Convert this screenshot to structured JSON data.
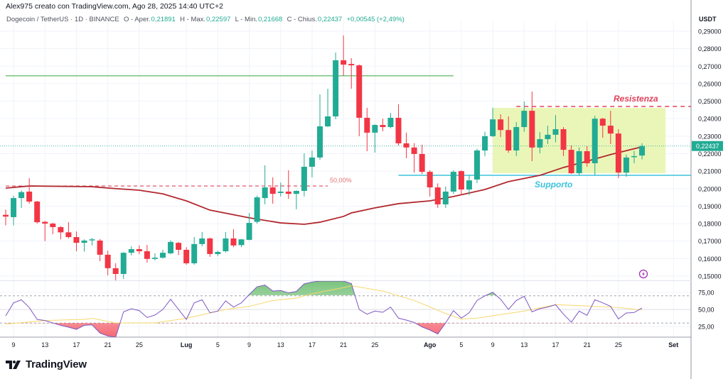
{
  "header": {
    "attribution": "Alex975 creato con TradingView.com, Ago 28, 2025 14:40 UTC+2"
  },
  "legend": {
    "symbol": "Dogecoin / TetherUS · 1D · BINANCE",
    "open_label": "O - Aper.",
    "open": "0,21891",
    "high_label": "H - Max.",
    "high": "0,22597",
    "low_label": "L - Min.",
    "low": "0,21668",
    "close_label": "C - Chius.",
    "close": "0,22437",
    "change": "+0,00545 (+2,49%)"
  },
  "price_axis": {
    "unit": "USDT",
    "ticks": [
      "0,29000",
      "0,28000",
      "0,27000",
      "0,26000",
      "0,25000",
      "0,24000",
      "0,23000",
      "0,22000",
      "0,21000",
      "0,20000",
      "0,19000",
      "0,18000",
      "0,17000",
      "0,16000",
      "0,15000"
    ],
    "tick_values": [
      0.29,
      0.28,
      0.27,
      0.26,
      0.25,
      0.24,
      0.23,
      0.22,
      0.21,
      0.2,
      0.19,
      0.18,
      0.17,
      0.16,
      0.15
    ],
    "last_price_label": "0,22437",
    "last_price": 0.22437
  },
  "rsi_axis": {
    "ticks": [
      "75,00",
      "50,00",
      "25,00"
    ],
    "tick_values": [
      75,
      50,
      25
    ],
    "bands": [
      70,
      50,
      30
    ]
  },
  "time_axis": [
    {
      "label": "9",
      "date": "2025-06-09"
    },
    {
      "label": "13",
      "date": "2025-06-13"
    },
    {
      "label": "17",
      "date": "2025-06-17"
    },
    {
      "label": "21",
      "date": "2025-06-21"
    },
    {
      "label": "25",
      "date": "2025-06-25"
    },
    {
      "label": "Lug",
      "date": "2025-07-01",
      "bold": true
    },
    {
      "label": "5",
      "date": "2025-07-05"
    },
    {
      "label": "9",
      "date": "2025-07-09"
    },
    {
      "label": "13",
      "date": "2025-07-13"
    },
    {
      "label": "17",
      "date": "2025-07-17"
    },
    {
      "label": "21",
      "date": "2025-07-21"
    },
    {
      "label": "25",
      "date": "2025-07-25"
    },
    {
      "label": "Ago",
      "date": "2025-08-01",
      "bold": true
    },
    {
      "label": "5",
      "date": "2025-08-05"
    },
    {
      "label": "9",
      "date": "2025-08-09"
    },
    {
      "label": "13",
      "date": "2025-08-13"
    },
    {
      "label": "17",
      "date": "2025-08-17"
    },
    {
      "label": "21",
      "date": "2025-08-21"
    },
    {
      "label": "25",
      "date": "2025-08-25"
    },
    {
      "label": "Set",
      "date": "2025-09-01",
      "bold": true
    }
  ],
  "colors": {
    "up": "#22ab94",
    "down": "#f23645",
    "ma": "#b2282e",
    "rsi": "#7e57c2",
    "rsi_ma": "#f7d76b",
    "support": "#3cc3dc",
    "resistance": "#e0425a",
    "horizontal": "#4caf50",
    "zone": "#e8f5b0",
    "grid": "#f0f3fa"
  },
  "chart_data": {
    "type": "candlestick",
    "fields": [
      "date",
      "open",
      "high",
      "low",
      "close",
      "rsi"
    ],
    "candles": [
      [
        "2025-06-08",
        0.185,
        0.188,
        0.179,
        0.184,
        40.6
      ],
      [
        "2025-06-09",
        0.1837,
        0.196,
        0.179,
        0.1946,
        59.7
      ],
      [
        "2025-06-10",
        0.1946,
        0.199,
        0.189,
        0.198,
        64.2
      ],
      [
        "2025-06-11",
        0.1983,
        0.206,
        0.1914,
        0.1926,
        52.8
      ],
      [
        "2025-06-12",
        0.1926,
        0.193,
        0.18,
        0.1808,
        35.4
      ],
      [
        "2025-06-13",
        0.181,
        0.1815,
        0.17,
        0.18,
        33.7
      ],
      [
        "2025-06-14",
        0.18,
        0.1805,
        0.174,
        0.178,
        30.2
      ],
      [
        "2025-06-15",
        0.178,
        0.1785,
        0.171,
        0.175,
        26.7
      ],
      [
        "2025-06-16",
        0.175,
        0.1808,
        0.1715,
        0.1723,
        24.0
      ],
      [
        "2025-06-17",
        0.1723,
        0.1755,
        0.1642,
        0.169,
        20.8
      ],
      [
        "2025-06-18",
        0.169,
        0.171,
        0.164,
        0.1703,
        26.7
      ],
      [
        "2025-06-19",
        0.1708,
        0.1718,
        0.1675,
        0.171,
        27.4
      ],
      [
        "2025-06-20",
        0.1703,
        0.1712,
        0.1585,
        0.1622,
        15.3
      ],
      [
        "2025-06-21",
        0.1622,
        0.1645,
        0.1504,
        0.1545,
        11.1
      ],
      [
        "2025-06-22",
        0.1545,
        0.1573,
        0.1471,
        0.1512,
        9.4
      ],
      [
        "2025-06-23",
        0.1512,
        0.1637,
        0.1484,
        0.1633,
        46.5
      ],
      [
        "2025-06-24",
        0.1633,
        0.167,
        0.1618,
        0.1654,
        51.0
      ],
      [
        "2025-06-25",
        0.1654,
        0.1675,
        0.1625,
        0.1642,
        48.3
      ],
      [
        "2025-06-26",
        0.1642,
        0.1678,
        0.1577,
        0.1598,
        38.2
      ],
      [
        "2025-06-27",
        0.1598,
        0.163,
        0.159,
        0.1605,
        41.7
      ],
      [
        "2025-06-28",
        0.1605,
        0.165,
        0.16,
        0.1633,
        50.0
      ],
      [
        "2025-06-29",
        0.163,
        0.1705,
        0.1625,
        0.1695,
        64.9
      ],
      [
        "2025-06-30",
        0.169,
        0.1695,
        0.162,
        0.165,
        50.0
      ],
      [
        "2025-07-01",
        0.165,
        0.1665,
        0.1565,
        0.1573,
        35.4
      ],
      [
        "2025-07-02",
        0.1573,
        0.1723,
        0.1565,
        0.1683,
        59.7
      ],
      [
        "2025-07-03",
        0.1683,
        0.1752,
        0.167,
        0.1715,
        64.2
      ],
      [
        "2025-07-04",
        0.1715,
        0.172,
        0.161,
        0.1626,
        45.1
      ],
      [
        "2025-07-05",
        0.1626,
        0.1645,
        0.1615,
        0.1638,
        47.6
      ],
      [
        "2025-07-06",
        0.1642,
        0.1752,
        0.1635,
        0.1715,
        62.5
      ],
      [
        "2025-07-07",
        0.1715,
        0.1768,
        0.1665,
        0.1675,
        53.5
      ],
      [
        "2025-07-08",
        0.1677,
        0.1712,
        0.1665,
        0.171,
        59.7
      ],
      [
        "2025-07-09",
        0.1707,
        0.186,
        0.1705,
        0.1804,
        71.9
      ],
      [
        "2025-07-10",
        0.181,
        0.196,
        0.18,
        0.195,
        83.3
      ],
      [
        "2025-07-11",
        0.1946,
        0.2133,
        0.191,
        0.2007,
        85.8
      ],
      [
        "2025-07-12",
        0.2007,
        0.2064,
        0.1914,
        0.197,
        77.0
      ],
      [
        "2025-07-13",
        0.1975,
        0.2035,
        0.1955,
        0.1983,
        77.8
      ],
      [
        "2025-07-14",
        0.1983,
        0.2105,
        0.1942,
        0.197,
        74.3
      ],
      [
        "2025-07-15",
        0.197,
        0.199,
        0.1882,
        0.1987,
        76.4
      ],
      [
        "2025-07-16",
        0.1987,
        0.2202,
        0.1955,
        0.2125,
        87.5
      ],
      [
        "2025-07-17",
        0.2125,
        0.2218,
        0.2064,
        0.2178,
        90.3
      ],
      [
        "2025-07-18",
        0.2178,
        0.2539,
        0.2165,
        0.2356,
        93.0
      ],
      [
        "2025-07-19",
        0.2356,
        0.2571,
        0.2352,
        0.2413,
        94.0
      ],
      [
        "2025-07-20",
        0.2413,
        0.2778,
        0.2397,
        0.2734,
        96.0
      ],
      [
        "2025-07-21",
        0.2734,
        0.2876,
        0.2645,
        0.2709,
        95.0
      ],
      [
        "2025-07-22",
        0.2713,
        0.2746,
        0.2571,
        0.2705,
        88.0
      ],
      [
        "2025-07-23",
        0.2705,
        0.271,
        0.23,
        0.2405,
        50.0
      ],
      [
        "2025-07-24",
        0.2405,
        0.2462,
        0.2214,
        0.232,
        43.0
      ],
      [
        "2025-07-25",
        0.232,
        0.2368,
        0.2206,
        0.2364,
        47.6
      ],
      [
        "2025-07-26",
        0.2364,
        0.24,
        0.2328,
        0.2352,
        45.8
      ],
      [
        "2025-07-27",
        0.2352,
        0.2433,
        0.2345,
        0.2405,
        53.5
      ],
      [
        "2025-07-28",
        0.2405,
        0.2482,
        0.2247,
        0.2259,
        37.2
      ],
      [
        "2025-07-29",
        0.2259,
        0.232,
        0.2174,
        0.2235,
        34.4
      ],
      [
        "2025-07-30",
        0.2235,
        0.226,
        0.2092,
        0.2198,
        30.9
      ],
      [
        "2025-07-31",
        0.2198,
        0.2251,
        0.2084,
        0.2096,
        24.3
      ],
      [
        "2025-08-01",
        0.2096,
        0.2105,
        0.1955,
        0.2007,
        19.8
      ],
      [
        "2025-08-02",
        0.2007,
        0.203,
        0.189,
        0.191,
        14.0
      ],
      [
        "2025-08-03",
        0.191,
        0.2012,
        0.189,
        0.1983,
        30.2
      ],
      [
        "2025-08-04",
        0.1983,
        0.2105,
        0.197,
        0.2096,
        48.3
      ],
      [
        "2025-08-05",
        0.21,
        0.2105,
        0.1963,
        0.1995,
        37.2
      ],
      [
        "2025-08-06",
        0.1995,
        0.2075,
        0.1963,
        0.2047,
        45.1
      ],
      [
        "2025-08-07",
        0.2052,
        0.2228,
        0.2032,
        0.2218,
        63.2
      ],
      [
        "2025-08-08",
        0.2218,
        0.2325,
        0.2185,
        0.23,
        70.0
      ],
      [
        "2025-08-09",
        0.23,
        0.2462,
        0.2295,
        0.2396,
        75.3
      ],
      [
        "2025-08-10",
        0.2396,
        0.2425,
        0.2295,
        0.2335,
        64.9
      ],
      [
        "2025-08-11",
        0.2335,
        0.2413,
        0.2205,
        0.2218,
        50.0
      ],
      [
        "2025-08-12",
        0.2218,
        0.238,
        0.2186,
        0.2352,
        63.2
      ],
      [
        "2025-08-13",
        0.2352,
        0.2498,
        0.2325,
        0.2445,
        69.4
      ],
      [
        "2025-08-14",
        0.2445,
        0.2555,
        0.2157,
        0.2235,
        46.5
      ],
      [
        "2025-08-15",
        0.2235,
        0.2323,
        0.2202,
        0.2283,
        51.0
      ],
      [
        "2025-08-16",
        0.2283,
        0.236,
        0.2255,
        0.2308,
        53.5
      ],
      [
        "2025-08-17",
        0.2308,
        0.2421,
        0.2265,
        0.234,
        56.9
      ],
      [
        "2025-08-18",
        0.234,
        0.2352,
        0.2186,
        0.2222,
        43.0
      ],
      [
        "2025-08-19",
        0.2222,
        0.2247,
        0.2084,
        0.2088,
        31.3
      ],
      [
        "2025-08-20",
        0.2088,
        0.2235,
        0.2076,
        0.2214,
        47.6
      ],
      [
        "2025-08-21",
        0.2214,
        0.2243,
        0.2125,
        0.2145,
        41.3
      ],
      [
        "2025-08-22",
        0.2145,
        0.2417,
        0.2076,
        0.24,
        64.2
      ],
      [
        "2025-08-23",
        0.24,
        0.2405,
        0.2291,
        0.236,
        59.7
      ],
      [
        "2025-08-24",
        0.236,
        0.2445,
        0.2255,
        0.2315,
        54.5
      ],
      [
        "2025-08-25",
        0.2315,
        0.234,
        0.206,
        0.2092,
        36.1
      ],
      [
        "2025-08-26",
        0.2092,
        0.2195,
        0.2068,
        0.2178,
        44.8
      ],
      [
        "2025-08-27",
        0.2182,
        0.2216,
        0.2145,
        0.2186,
        45.5
      ],
      [
        "2025-08-28",
        0.21891,
        0.22597,
        0.21668,
        0.22437,
        52.1
      ]
    ],
    "moving_average": [
      [
        "2025-06-08",
        0.2003
      ],
      [
        "2025-06-11",
        0.2015
      ],
      [
        "2025-06-19",
        0.2011
      ],
      [
        "2025-06-22",
        0.2
      ],
      [
        "2025-06-25",
        0.1991
      ],
      [
        "2025-06-28",
        0.197
      ],
      [
        "2025-07-01",
        0.193
      ],
      [
        "2025-07-04",
        0.1877
      ],
      [
        "2025-07-09",
        0.1833
      ],
      [
        "2025-07-13",
        0.1804
      ],
      [
        "2025-07-16",
        0.1796
      ],
      [
        "2025-07-18",
        0.1808
      ],
      [
        "2025-07-21",
        0.1841
      ],
      [
        "2025-07-22",
        0.1861
      ],
      [
        "2025-07-25",
        0.189
      ],
      [
        "2025-07-28",
        0.1914
      ],
      [
        "2025-08-01",
        0.193
      ],
      [
        "2025-08-04",
        0.1955
      ],
      [
        "2025-08-08",
        0.1995
      ],
      [
        "2025-08-11",
        0.204
      ],
      [
        "2025-08-15",
        0.2076
      ],
      [
        "2025-08-18",
        0.2121
      ],
      [
        "2025-08-21",
        0.2157
      ],
      [
        "2025-08-24",
        0.2195
      ],
      [
        "2025-08-28",
        0.2239
      ]
    ],
    "rsi_ma": [
      [
        "2025-06-08",
        28.5
      ],
      [
        "2025-06-13",
        33.7
      ],
      [
        "2025-06-18",
        35.4
      ],
      [
        "2025-06-19",
        37
      ],
      [
        "2025-06-22",
        30.2
      ],
      [
        "2025-06-27",
        30.2
      ],
      [
        "2025-07-01",
        37
      ],
      [
        "2025-07-06",
        50
      ],
      [
        "2025-07-09",
        54.5
      ],
      [
        "2025-07-12",
        63.2
      ],
      [
        "2025-07-15",
        66.7
      ],
      [
        "2025-07-17",
        73
      ],
      [
        "2025-07-21",
        82
      ],
      [
        "2025-07-22",
        84.7
      ],
      [
        "2025-07-26",
        77
      ],
      [
        "2025-07-30",
        63.2
      ],
      [
        "2025-08-03",
        44
      ],
      [
        "2025-08-05",
        36
      ],
      [
        "2025-08-07",
        37.2
      ],
      [
        "2025-08-10",
        42.4
      ],
      [
        "2025-08-13",
        47.6
      ],
      [
        "2025-08-17",
        57
      ],
      [
        "2025-08-20",
        55.6
      ],
      [
        "2025-08-25",
        52.8
      ],
      [
        "2025-08-28",
        49.3
      ]
    ],
    "ylim": [
      0.145,
      0.295
    ],
    "rsi_ylim": [
      9,
      92
    ]
  },
  "annotations": {
    "horizontal_line": {
      "price": 0.2645,
      "from": "2025-06-08",
      "to": "2025-08-04"
    },
    "fib_line": {
      "price": 0.2015,
      "from": "2025-06-08",
      "to": "2025-07-19",
      "label": "50,00%"
    },
    "resistance": {
      "price": 0.247,
      "from": "2025-08-12",
      "label": "Resistenza"
    },
    "support": {
      "price": 0.2076,
      "from": "2025-07-28",
      "label": "Supporto"
    },
    "range_zone": {
      "from": "2025-08-09",
      "to": "2025-08-31",
      "top": 0.2462,
      "bottom": 0.2088
    }
  },
  "logo": {
    "text": "TradingView"
  },
  "icons": {
    "alert": "lightning-icon"
  }
}
